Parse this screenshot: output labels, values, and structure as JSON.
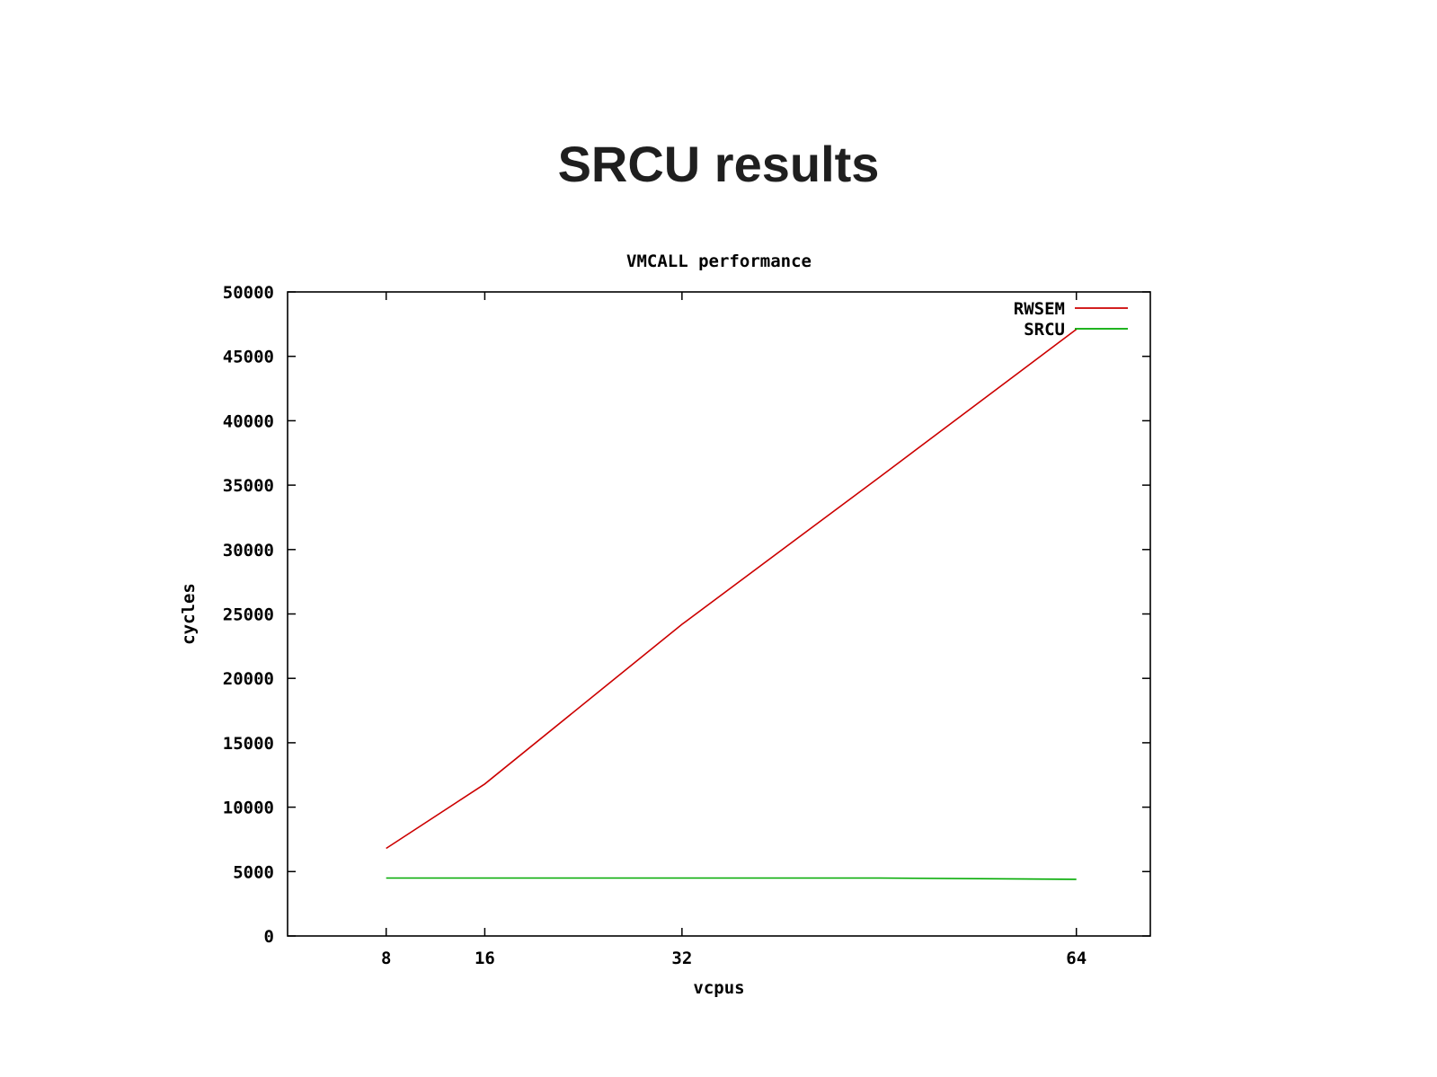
{
  "slide": {
    "title": "SRCU results"
  },
  "chart_data": {
    "type": "line",
    "title": "VMCALL performance",
    "xlabel": "vcpus",
    "ylabel": "cycles",
    "xlim": [
      0,
      70
    ],
    "ylim": [
      0,
      50000
    ],
    "xticks": [
      8,
      16,
      32,
      64
    ],
    "yticks": [
      0,
      5000,
      10000,
      15000,
      20000,
      25000,
      30000,
      35000,
      40000,
      45000,
      50000
    ],
    "legend_position": "top-right",
    "grid": false,
    "series": [
      {
        "name": "RWSEM",
        "color": "#cc0000",
        "x": [
          8,
          16,
          32,
          48,
          64
        ],
        "y": [
          6800,
          11800,
          24200,
          35600,
          47100
        ]
      },
      {
        "name": "SRCU",
        "color": "#00aa00",
        "x": [
          8,
          16,
          32,
          48,
          64
        ],
        "y": [
          4500,
          4500,
          4500,
          4500,
          4400
        ]
      }
    ]
  }
}
